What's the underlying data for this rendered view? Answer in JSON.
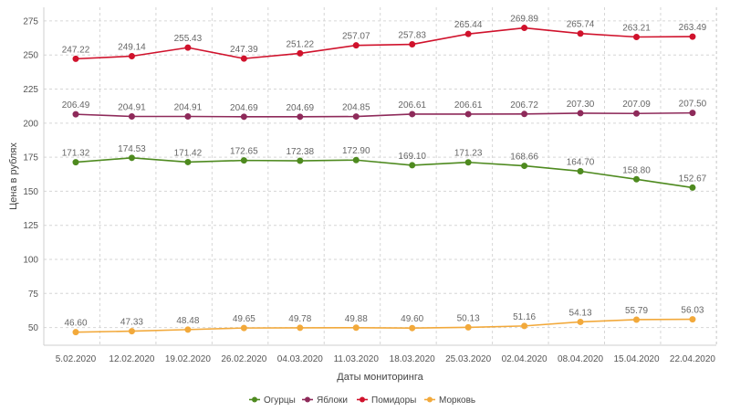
{
  "chart_data": {
    "type": "line",
    "title": "",
    "xlabel": "Даты мониторинга",
    "ylabel": "Цена в рублях",
    "ylim": [
      37,
      285
    ],
    "yticks": [
      50,
      75,
      100,
      125,
      150,
      175,
      200,
      225,
      250,
      275
    ],
    "grid": true,
    "legend_position": "bottom-center",
    "categories": [
      "5.02.2020",
      "12.02.2020",
      "19.02.2020",
      "26.02.2020",
      "04.03.2020",
      "11.03.2020",
      "18.03.2020",
      "25.03.2020",
      "02.04.2020",
      "08.04.2020",
      "15.04.2020",
      "22.04.2020"
    ],
    "series": [
      {
        "name": "Огурцы",
        "color": "#4e8a1f",
        "values": [
          171.32,
          174.53,
          171.42,
          172.65,
          172.38,
          172.9,
          169.1,
          171.23,
          168.66,
          164.7,
          158.8,
          152.67
        ],
        "labels": [
          "171.32",
          "174.53",
          "171.42",
          "172.65",
          "172.38",
          "172.90",
          "169.10",
          "171.23",
          "168.66",
          "164.70",
          "158.80",
          "152.67"
        ]
      },
      {
        "name": "Яблоки",
        "color": "#8e2a5a",
        "values": [
          206.49,
          204.91,
          204.91,
          204.69,
          204.69,
          204.85,
          206.61,
          206.61,
          206.72,
          207.3,
          207.09,
          207.5
        ],
        "labels": [
          "206.49",
          "204.91",
          "204.91",
          "204.69",
          "204.69",
          "204.85",
          "206.61",
          "206.61",
          "206.72",
          "207.30",
          "207.09",
          "207.50"
        ]
      },
      {
        "name": "Помидоры",
        "color": "#d0122c",
        "values": [
          247.22,
          249.14,
          255.43,
          247.39,
          251.22,
          257.07,
          257.83,
          265.44,
          269.89,
          265.74,
          263.21,
          263.49
        ],
        "labels": [
          "247.22",
          "249.14",
          "255.43",
          "247.39",
          "251.22",
          "257.07",
          "257.83",
          "265.44",
          "269.89",
          "265.74",
          "263.21",
          "263.49"
        ]
      },
      {
        "name": "Морковь",
        "color": "#f2a93b",
        "values": [
          46.6,
          47.33,
          48.48,
          49.65,
          49.78,
          49.88,
          49.6,
          50.13,
          51.16,
          54.13,
          55.79,
          56.03
        ],
        "labels": [
          "46.60",
          "47.33",
          "48.48",
          "49.65",
          "49.78",
          "49.88",
          "49.60",
          "50.13",
          "51.16",
          "54.13",
          "55.79",
          "56.03"
        ]
      }
    ]
  }
}
